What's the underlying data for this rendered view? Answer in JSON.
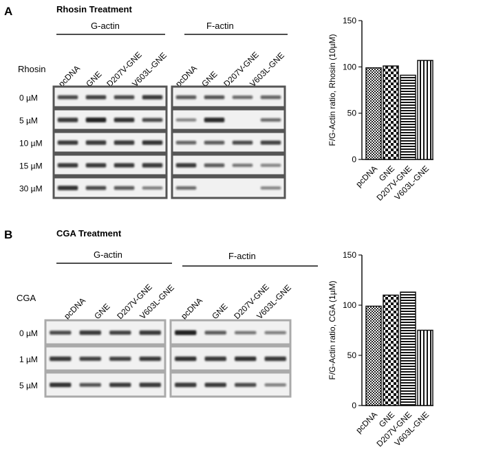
{
  "panel_a": {
    "letter": "A",
    "title": "Rhosin Treatment",
    "blot": {
      "g_actin_label": "G-actin",
      "f_actin_label": "F-actin",
      "treatment_label": "Rhosin",
      "lanes": [
        "pcDNA",
        "GNE",
        "D207V-GNE",
        "V603L-GNE"
      ],
      "rows": [
        "0 µM",
        "5 µM",
        "10 µM",
        "15 µM",
        "30 µM"
      ],
      "g_intensity": [
        [
          0.7,
          0.75,
          0.7,
          0.8
        ],
        [
          0.85,
          1.0,
          0.9,
          0.7
        ],
        [
          0.8,
          0.85,
          0.85,
          0.9
        ],
        [
          0.8,
          0.8,
          0.8,
          0.85
        ],
        [
          0.9,
          0.7,
          0.6,
          0.4
        ]
      ],
      "f_intensity": [
        [
          0.6,
          0.65,
          0.5,
          0.55
        ],
        [
          0.35,
          0.95,
          0.0,
          0.5
        ],
        [
          0.55,
          0.6,
          0.7,
          0.75
        ],
        [
          0.8,
          0.6,
          0.45,
          0.35
        ],
        [
          0.5,
          0.0,
          0.0,
          0.35
        ]
      ]
    }
  },
  "panel_b": {
    "letter": "B",
    "title": "CGA Treatment",
    "blot": {
      "g_actin_label": "G-actin",
      "f_actin_label": "F-actin",
      "treatment_label": "CGA",
      "lanes": [
        "pcDNA",
        "GNE",
        "D207V-GNE",
        "V603L-GNE"
      ],
      "rows": [
        "0 µM",
        "1 µM",
        "5 µM"
      ],
      "g_intensity": [
        [
          0.7,
          0.85,
          0.75,
          0.85
        ],
        [
          0.85,
          0.75,
          0.75,
          0.8
        ],
        [
          0.9,
          0.65,
          0.8,
          0.85
        ]
      ],
      "f_intensity": [
        [
          1.0,
          0.6,
          0.45,
          0.4
        ],
        [
          0.9,
          0.85,
          0.9,
          0.85
        ],
        [
          0.85,
          0.8,
          0.7,
          0.4
        ]
      ]
    }
  },
  "chart_data": [
    {
      "type": "bar",
      "categories": [
        "pcDNA",
        "GNE",
        "D207V-GNE",
        "V603L-GNE"
      ],
      "values": [
        99,
        101,
        91,
        107
      ],
      "patterns": [
        "checker-fine",
        "checker-large",
        "hstripe",
        "vstripe"
      ],
      "title": "",
      "xlabel": "",
      "ylabel": "F/G-Actin ratio, Rhosin (10µM)",
      "ylim": [
        0,
        150
      ],
      "yticks": [
        "0",
        "50",
        "100",
        "150"
      ],
      "grid": false
    },
    {
      "type": "bar",
      "categories": [
        "pcDNA",
        "GNE",
        "D207V-GNE",
        "V603L-GNE"
      ],
      "values": [
        99,
        110,
        113,
        75
      ],
      "patterns": [
        "checker-fine",
        "checker-large",
        "hstripe",
        "vstripe"
      ],
      "title": "",
      "xlabel": "",
      "ylabel": "F/G-Actin ratio, CGA (1µM)",
      "ylim": [
        0,
        150
      ],
      "yticks": [
        "0",
        "50",
        "100",
        "150"
      ],
      "grid": false
    }
  ]
}
